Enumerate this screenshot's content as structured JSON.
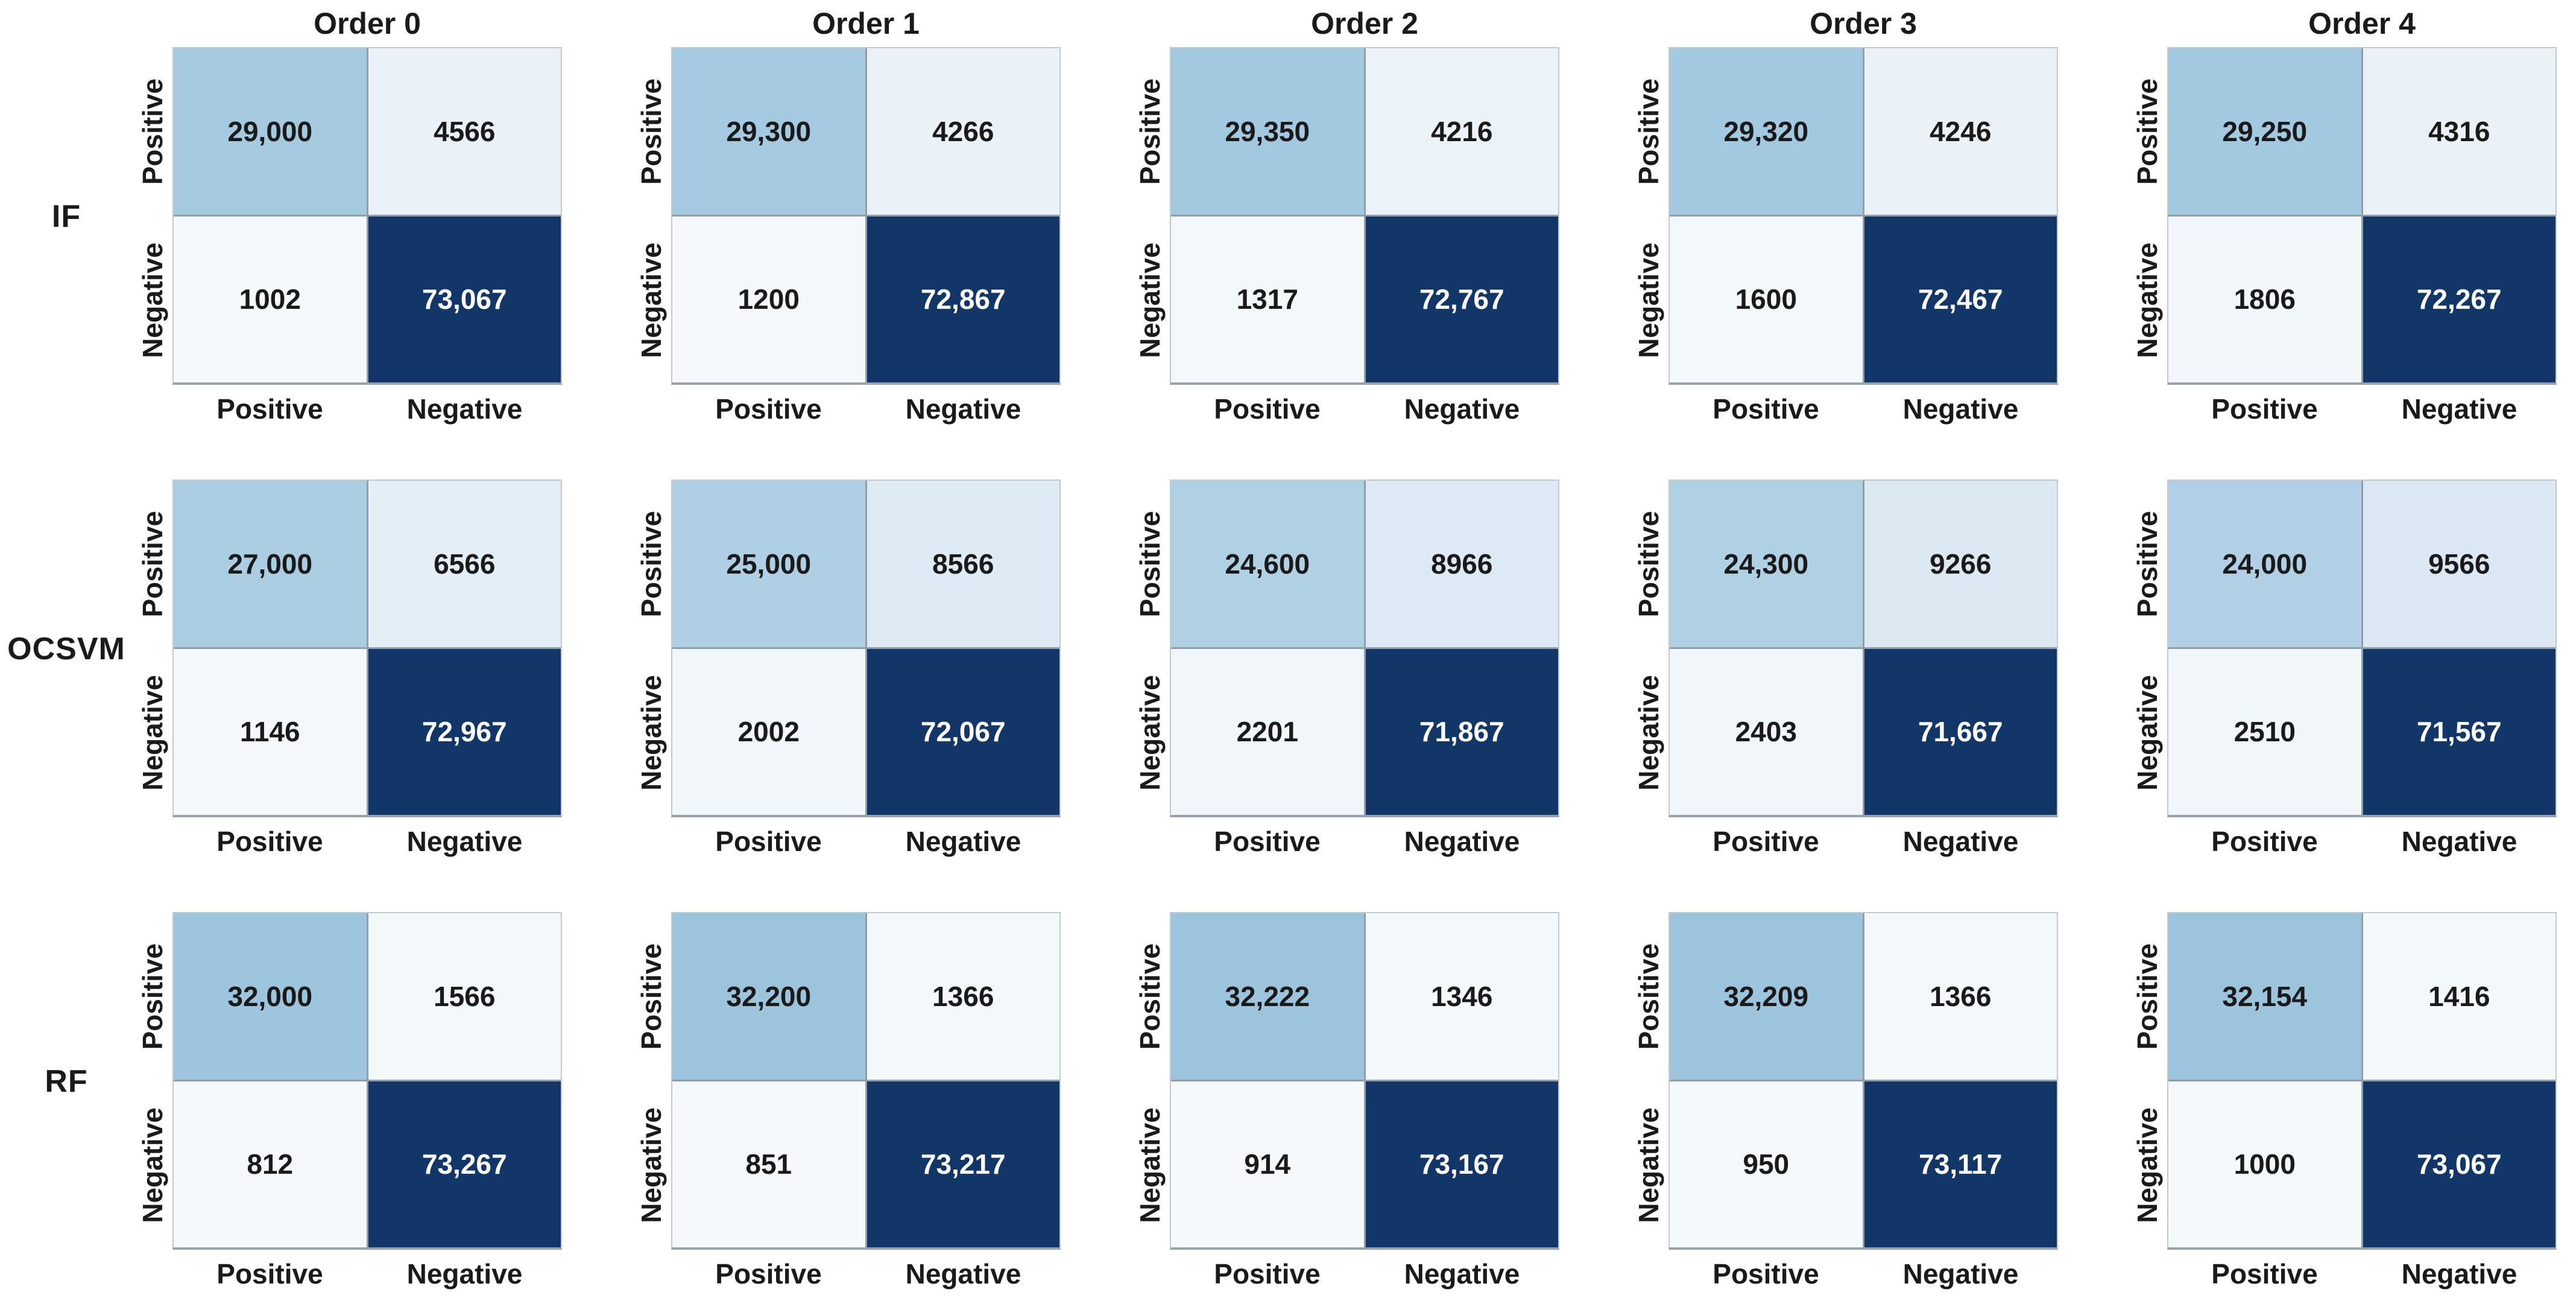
{
  "chart_data": {
    "type": "heatmap",
    "subtype": "confusion-matrix-grid",
    "grid": {
      "rows": 3,
      "cols": 5
    },
    "col_titles": [
      "Order 0",
      "Order 1",
      "Order 2",
      "Order 3",
      "Order 4"
    ],
    "row_models": [
      "IF",
      "OCSVM",
      "RF"
    ],
    "x_ticklabels": [
      "Positive",
      "Negative"
    ],
    "y_ticklabels": [
      "Positive",
      "Negative"
    ],
    "colormap": "Blues",
    "colors": {
      "cell_min": "#f7fafd",
      "cell_light_blue": "#a3c9e0",
      "cell_max": "#123668",
      "gridline": "#929da7",
      "text_dark": "#1a1a1a",
      "text_light": "#ffffff",
      "background": "#ffffff"
    },
    "matrices": [
      {
        "model": "IF",
        "order": "Order 0",
        "values": [
          [
            "29,000",
            "4566"
          ],
          [
            "1002",
            "73,067"
          ]
        ]
      },
      {
        "model": "IF",
        "order": "Order 1",
        "values": [
          [
            "29,300",
            "4266"
          ],
          [
            "1200",
            "72,867"
          ]
        ]
      },
      {
        "model": "IF",
        "order": "Order 2",
        "values": [
          [
            "29,350",
            "4216"
          ],
          [
            "1317",
            "72,767"
          ]
        ]
      },
      {
        "model": "IF",
        "order": "Order 3",
        "values": [
          [
            "29,320",
            "4246"
          ],
          [
            "1600",
            "72,467"
          ]
        ]
      },
      {
        "model": "IF",
        "order": "Order 4",
        "values": [
          [
            "29,250",
            "4316"
          ],
          [
            "1806",
            "72,267"
          ]
        ]
      },
      {
        "model": "OCSVM",
        "order": "Order 0",
        "values": [
          [
            "27,000",
            "6566"
          ],
          [
            "1146",
            "72,967"
          ]
        ]
      },
      {
        "model": "OCSVM",
        "order": "Order 1",
        "values": [
          [
            "25,000",
            "8566"
          ],
          [
            "2002",
            "72,067"
          ]
        ]
      },
      {
        "model": "OCSVM",
        "order": "Order 2",
        "values": [
          [
            "24,600",
            "8966"
          ],
          [
            "2201",
            "71,867"
          ]
        ]
      },
      {
        "model": "OCSVM",
        "order": "Order 3",
        "values": [
          [
            "24,300",
            "9266"
          ],
          [
            "2403",
            "71,667"
          ]
        ]
      },
      {
        "model": "OCSVM",
        "order": "Order 4",
        "values": [
          [
            "24,000",
            "9566"
          ],
          [
            "2510",
            "71,567"
          ]
        ]
      },
      {
        "model": "RF",
        "order": "Order 0",
        "values": [
          [
            "32,000",
            "1566"
          ],
          [
            "812",
            "73,267"
          ]
        ]
      },
      {
        "model": "RF",
        "order": "Order 1",
        "values": [
          [
            "32,200",
            "1366"
          ],
          [
            "851",
            "73,217"
          ]
        ]
      },
      {
        "model": "RF",
        "order": "Order 2",
        "values": [
          [
            "32,222",
            "1346"
          ],
          [
            "914",
            "73,167"
          ]
        ]
      },
      {
        "model": "RF",
        "order": "Order 3",
        "values": [
          [
            "32,209",
            "1366"
          ],
          [
            "950",
            "73,117"
          ]
        ]
      },
      {
        "model": "RF",
        "order": "Order 4",
        "values": [
          [
            "32,154",
            "1416"
          ],
          [
            "1000",
            "73,067"
          ]
        ]
      }
    ]
  }
}
